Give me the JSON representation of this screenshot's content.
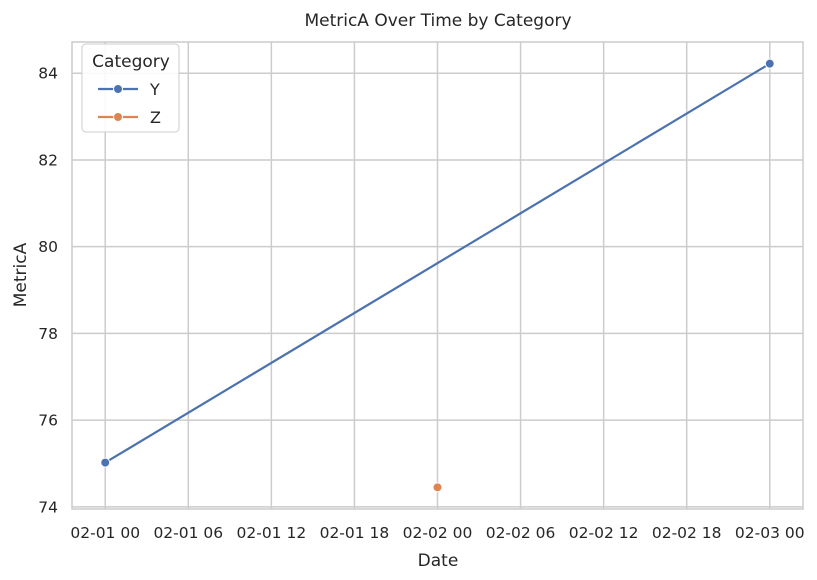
{
  "chart_data": {
    "type": "line",
    "title": "MetricA Over Time by Category",
    "xlabel": "Date",
    "ylabel": "MetricA",
    "x_ticks": [
      "02-01 00",
      "02-01 06",
      "02-01 12",
      "02-01 18",
      "02-02 00",
      "02-02 06",
      "02-02 12",
      "02-02 18",
      "02-03 00"
    ],
    "y_ticks": [
      "74",
      "76",
      "78",
      "80",
      "82",
      "84"
    ],
    "xlim": [
      "2024-01-31 21:36",
      "2024-02-03 02:24"
    ],
    "ylim": [
      73.95,
      84.72
    ],
    "grid": true,
    "legend": {
      "title": "Category",
      "position": "top-left"
    },
    "series": [
      {
        "name": "Y",
        "color": "#4c72b0",
        "points": [
          {
            "x": "2024-02-01 00:00",
            "y": 75.02
          },
          {
            "x": "2024-02-03 00:00",
            "y": 84.22
          }
        ]
      },
      {
        "name": "Z",
        "color": "#dd8452",
        "points": [
          {
            "x": "2024-02-02 00:00",
            "y": 74.45
          }
        ]
      }
    ]
  }
}
